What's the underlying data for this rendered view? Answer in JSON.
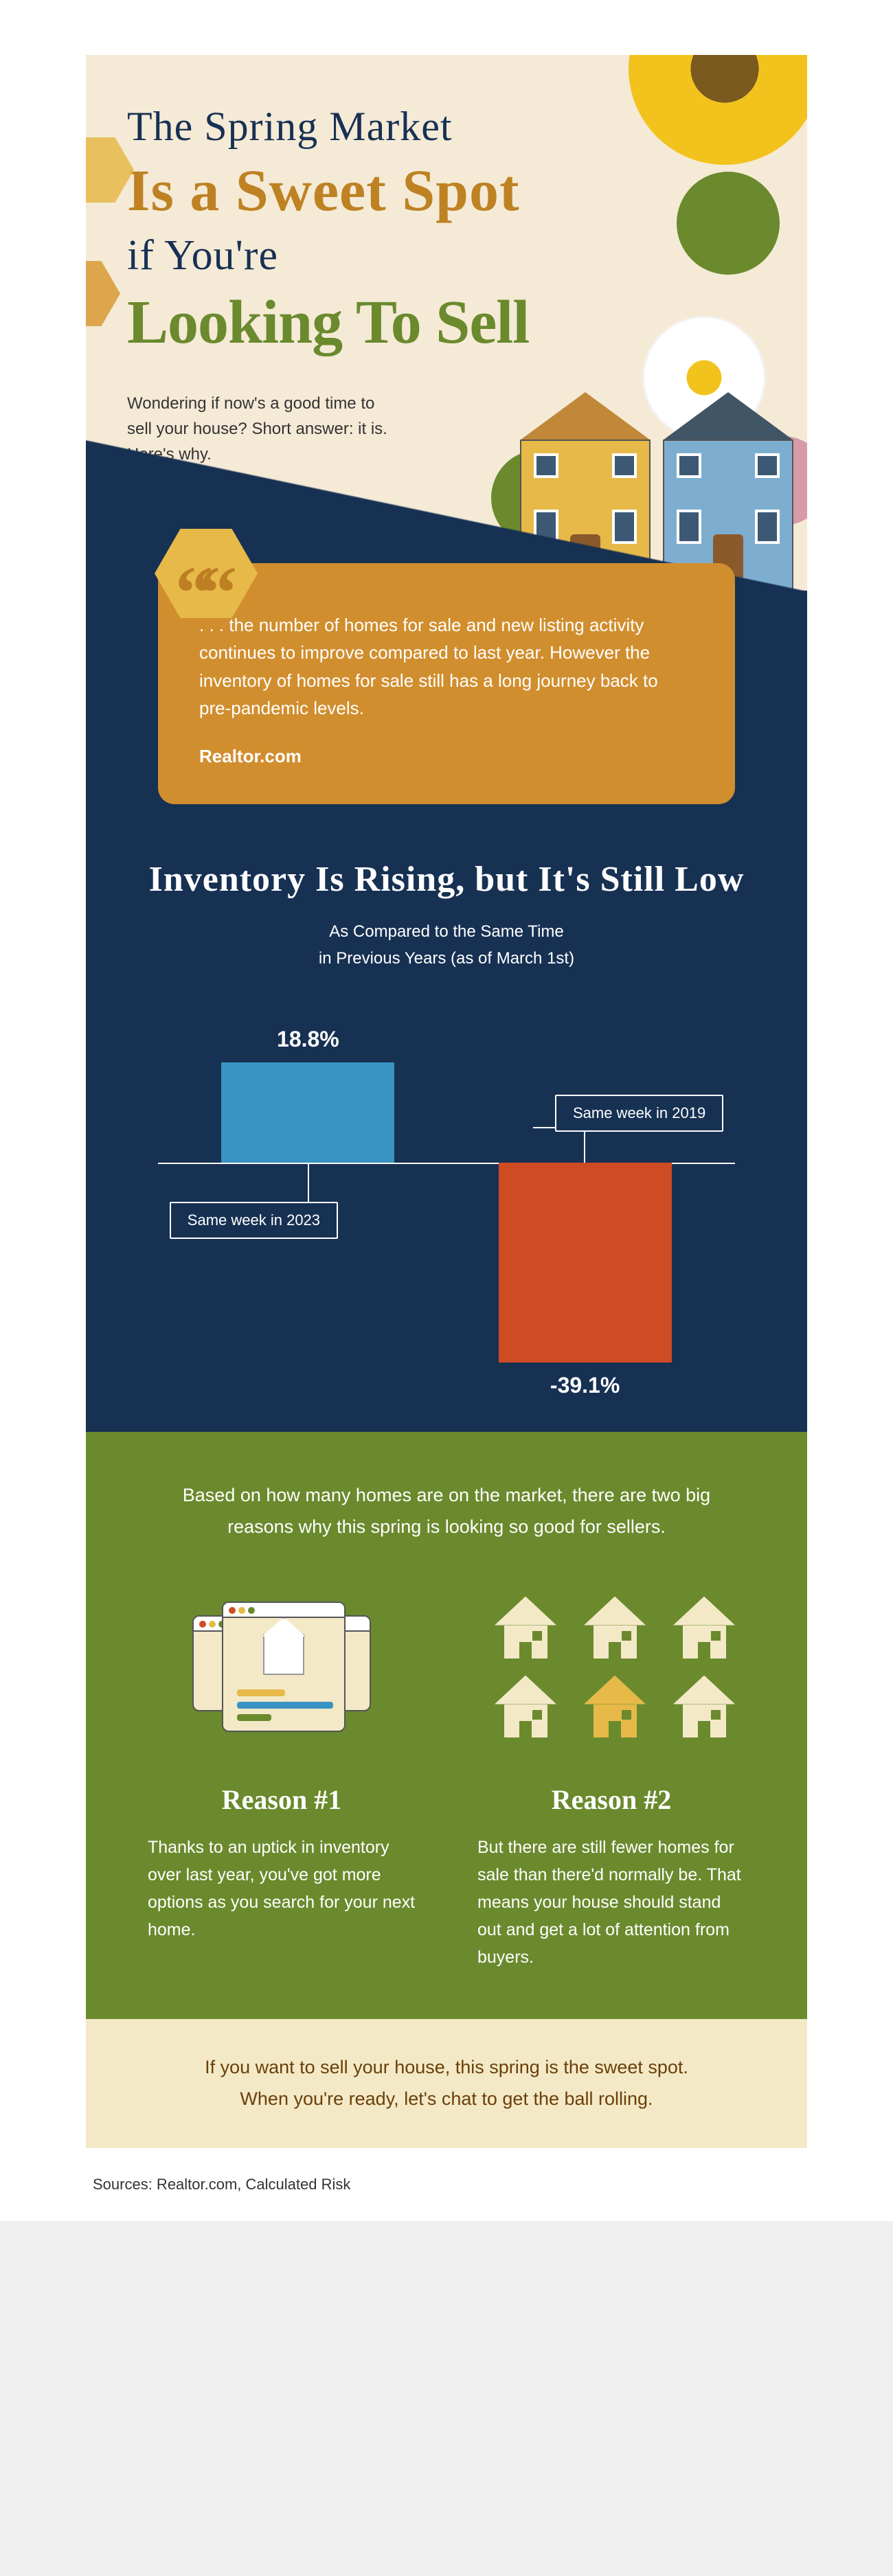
{
  "header": {
    "line1": "The Spring Market",
    "line2": "Is a Sweet Spot",
    "line3": "if You're",
    "line4": "Looking To Sell",
    "intro": "Wondering if now's a good time to sell your house? Short answer: it is. Here's why.",
    "colors": {
      "line1": "#173153",
      "line2": "#be8223",
      "line3": "#173153",
      "line4": "#6a8a2d",
      "background": "#f5ead6"
    }
  },
  "quote": {
    "text": ". . . the number of homes for sale and new listing activity continues to improve compared to last year. However the inventory of homes for sale still has a long journey back to pre-pandemic levels.",
    "cite": "Realtor.com",
    "card_bg": "#d18e2e",
    "hex_bg": "#e6b949"
  },
  "chart": {
    "title": "Inventory Is Rising, but It's Still Low",
    "subtitle_line1": "As Compared to the Same Time",
    "subtitle_line2": "in Previous Years (as of March 1st)",
    "bars": [
      {
        "label": "Same week in 2023",
        "value_text": "18.8%",
        "value": 18.8,
        "color": "#3993c3"
      },
      {
        "label": "Same week in 2019",
        "value_text": "-39.1%",
        "value": -39.1,
        "color": "#cf4b24"
      }
    ],
    "baseline_color": "#ffffff",
    "section_bg": "#173153",
    "text_color": "#ffffff"
  },
  "reasons": {
    "intro": "Based on how many homes are on the market, there are two big reasons why this spring is looking so good for sellers.",
    "section_bg": "#6a8a2d",
    "items": [
      {
        "title": "Reason #1",
        "body": "Thanks to an uptick in inventory over last year, you've got more options as you search for your next home."
      },
      {
        "title": "Reason #2",
        "body": "But there are still fewer homes for sale than there'd normally be. That means your house should stand out and get a lot of attention from buyers."
      }
    ],
    "icon_colors": {
      "card_bg": "#f3e9c7",
      "house_cream": "#f3e9c7",
      "house_gold": "#e6b949",
      "accent_red": "#cf4b24",
      "accent_yellow": "#e6b949",
      "accent_green": "#6a8a2d",
      "accent_blue": "#3993c3"
    }
  },
  "cta": {
    "text_line1": "If you want to sell your house, this spring is the sweet spot.",
    "text_line2": "When you're ready, let's chat to get the ball rolling.",
    "bg": "#f3e9c7",
    "color": "#6b3f08"
  },
  "sources": "Sources: Realtor.com, Calculated Risk"
}
